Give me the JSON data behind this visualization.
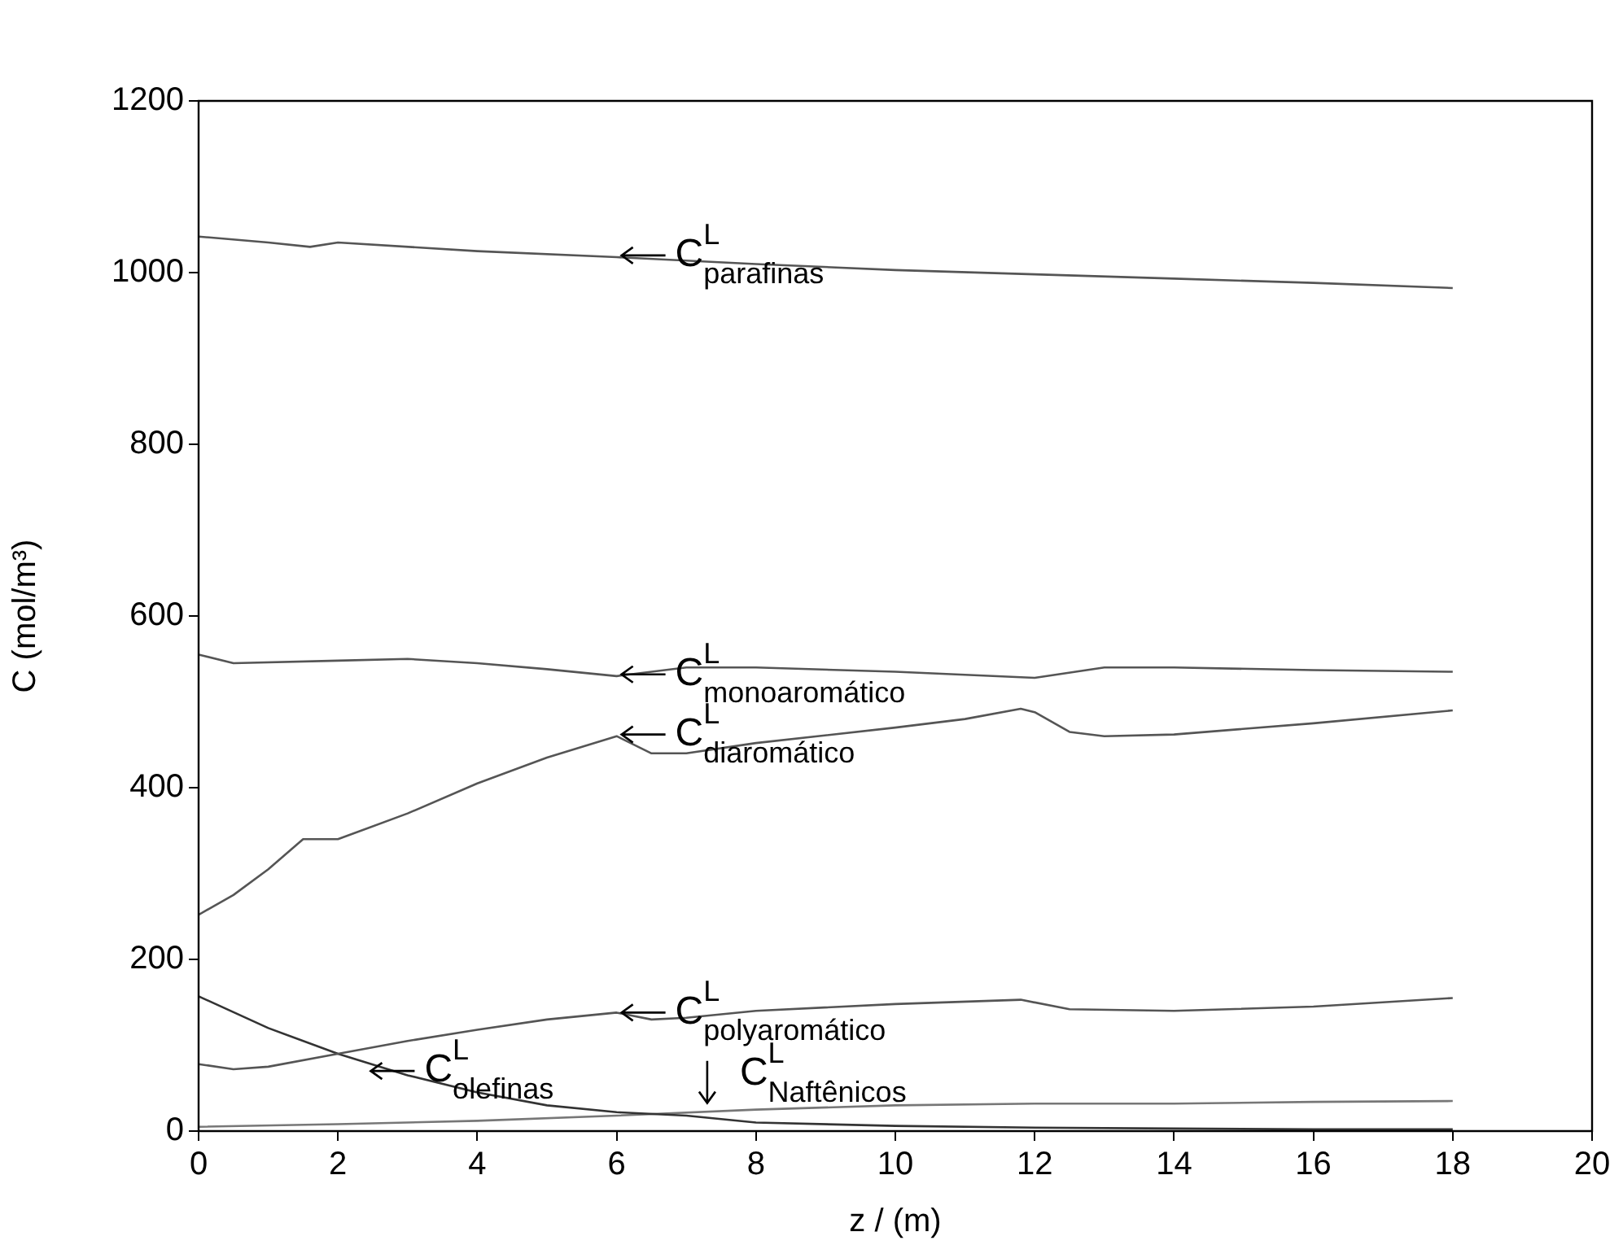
{
  "chart_data": {
    "type": "line",
    "xlabel": "z / (m)",
    "ylabel": "C (mol/m³)",
    "xlim": [
      0,
      20
    ],
    "xticks": [
      0,
      2,
      4,
      6,
      8,
      10,
      12,
      14,
      16,
      18,
      20
    ],
    "ylim": [
      0,
      1200
    ],
    "yticks": [
      0,
      200,
      400,
      600,
      800,
      1000,
      1200
    ],
    "grid": false,
    "legend": false,
    "marker": "none",
    "series": [
      {
        "color": "#555555",
        "x": [
          0,
          1,
          1.6,
          2,
          4,
          6,
          8,
          10,
          12,
          14,
          16,
          18
        ],
        "values": [
          1042,
          1035,
          1030,
          1035,
          1025,
          1018,
          1010,
          1003,
          998,
          993,
          988,
          982
        ]
      },
      {
        "color": "#555555",
        "x": [
          0,
          0.5,
          2,
          3,
          4,
          5,
          6,
          7,
          8,
          10,
          12,
          13,
          14,
          16,
          18
        ],
        "values": [
          555,
          545,
          548,
          550,
          545,
          538,
          530,
          540,
          540,
          535,
          528,
          540,
          540,
          537,
          535
        ]
      },
      {
        "color": "#555555",
        "x": [
          0,
          0.5,
          1,
          1.5,
          2,
          3,
          4,
          5,
          6,
          6.5,
          7,
          8,
          10,
          11,
          11.8,
          12,
          12.5,
          13,
          14,
          16,
          18
        ],
        "values": [
          252,
          275,
          305,
          340,
          340,
          370,
          405,
          435,
          460,
          440,
          440,
          452,
          470,
          480,
          492,
          488,
          465,
          460,
          462,
          475,
          490
        ]
      },
      {
        "color": "#555555",
        "x": [
          0,
          0.5,
          1,
          2,
          3,
          4,
          5,
          6,
          6.5,
          7,
          8,
          10,
          11.8,
          12.5,
          14,
          16,
          18
        ],
        "values": [
          78,
          72,
          75,
          90,
          105,
          118,
          130,
          138,
          130,
          132,
          140,
          148,
          153,
          142,
          140,
          145,
          155
        ]
      },
      {
        "color": "#333333",
        "x": [
          0,
          1,
          2,
          3,
          4,
          5,
          6,
          7,
          8,
          10,
          12,
          14,
          16,
          18
        ],
        "values": [
          157,
          120,
          90,
          65,
          45,
          30,
          22,
          18,
          10,
          6,
          4,
          3,
          2,
          2
        ]
      },
      {
        "color": "#777777",
        "x": [
          0,
          2,
          4,
          6,
          8,
          10,
          12,
          14,
          16,
          18
        ],
        "values": [
          5,
          8,
          12,
          18,
          25,
          30,
          32,
          32,
          34,
          35
        ]
      }
    ],
    "annotations": [
      {
        "text": "C$^{L}$$_{parafinas}$",
        "x": 6,
        "y": 1020
      },
      {
        "text": "C$^{L}$$_{monoaromático}$",
        "x": 6,
        "y": 532
      },
      {
        "text": "C$^{L}$$_{diaromático}$",
        "x": 6,
        "y": 462
      },
      {
        "text": "C$^{L}$$_{polyaromático}$",
        "x": 6,
        "y": 138
      },
      {
        "text": "C$^{L}$$_{olefinas}$",
        "x": 2.4,
        "y": 70
      },
      {
        "text": "C$^{L}$$_{Naftênicos}$",
        "x": 7.3,
        "y": 25
      }
    ]
  }
}
